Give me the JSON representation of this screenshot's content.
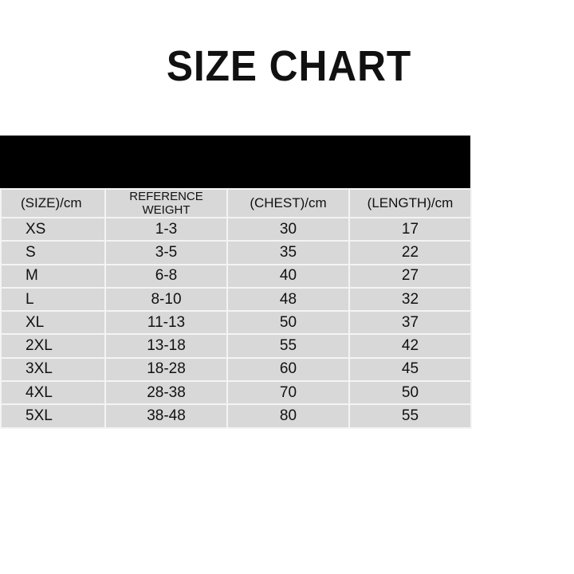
{
  "title": "SIZE CHART",
  "table": {
    "headers": [
      "(SIZE)/cm",
      "REFERENCE WEIGHT",
      "(CHEST)/cm",
      "(LENGTH)/cm"
    ],
    "rows": [
      [
        "XS",
        "1-3",
        "30",
        "17"
      ],
      [
        "S",
        "3-5",
        "35",
        "22"
      ],
      [
        "M",
        "6-8",
        "40",
        "27"
      ],
      [
        "L",
        "8-10",
        "48",
        "32"
      ],
      [
        "XL",
        "11-13",
        "50",
        "37"
      ],
      [
        "2XL",
        "13-18",
        "55",
        "42"
      ],
      [
        "3XL",
        "18-28",
        "60",
        "45"
      ],
      [
        "4XL",
        "28-38",
        "70",
        "50"
      ],
      [
        "5XL",
        "38-48",
        "80",
        "55"
      ]
    ]
  }
}
